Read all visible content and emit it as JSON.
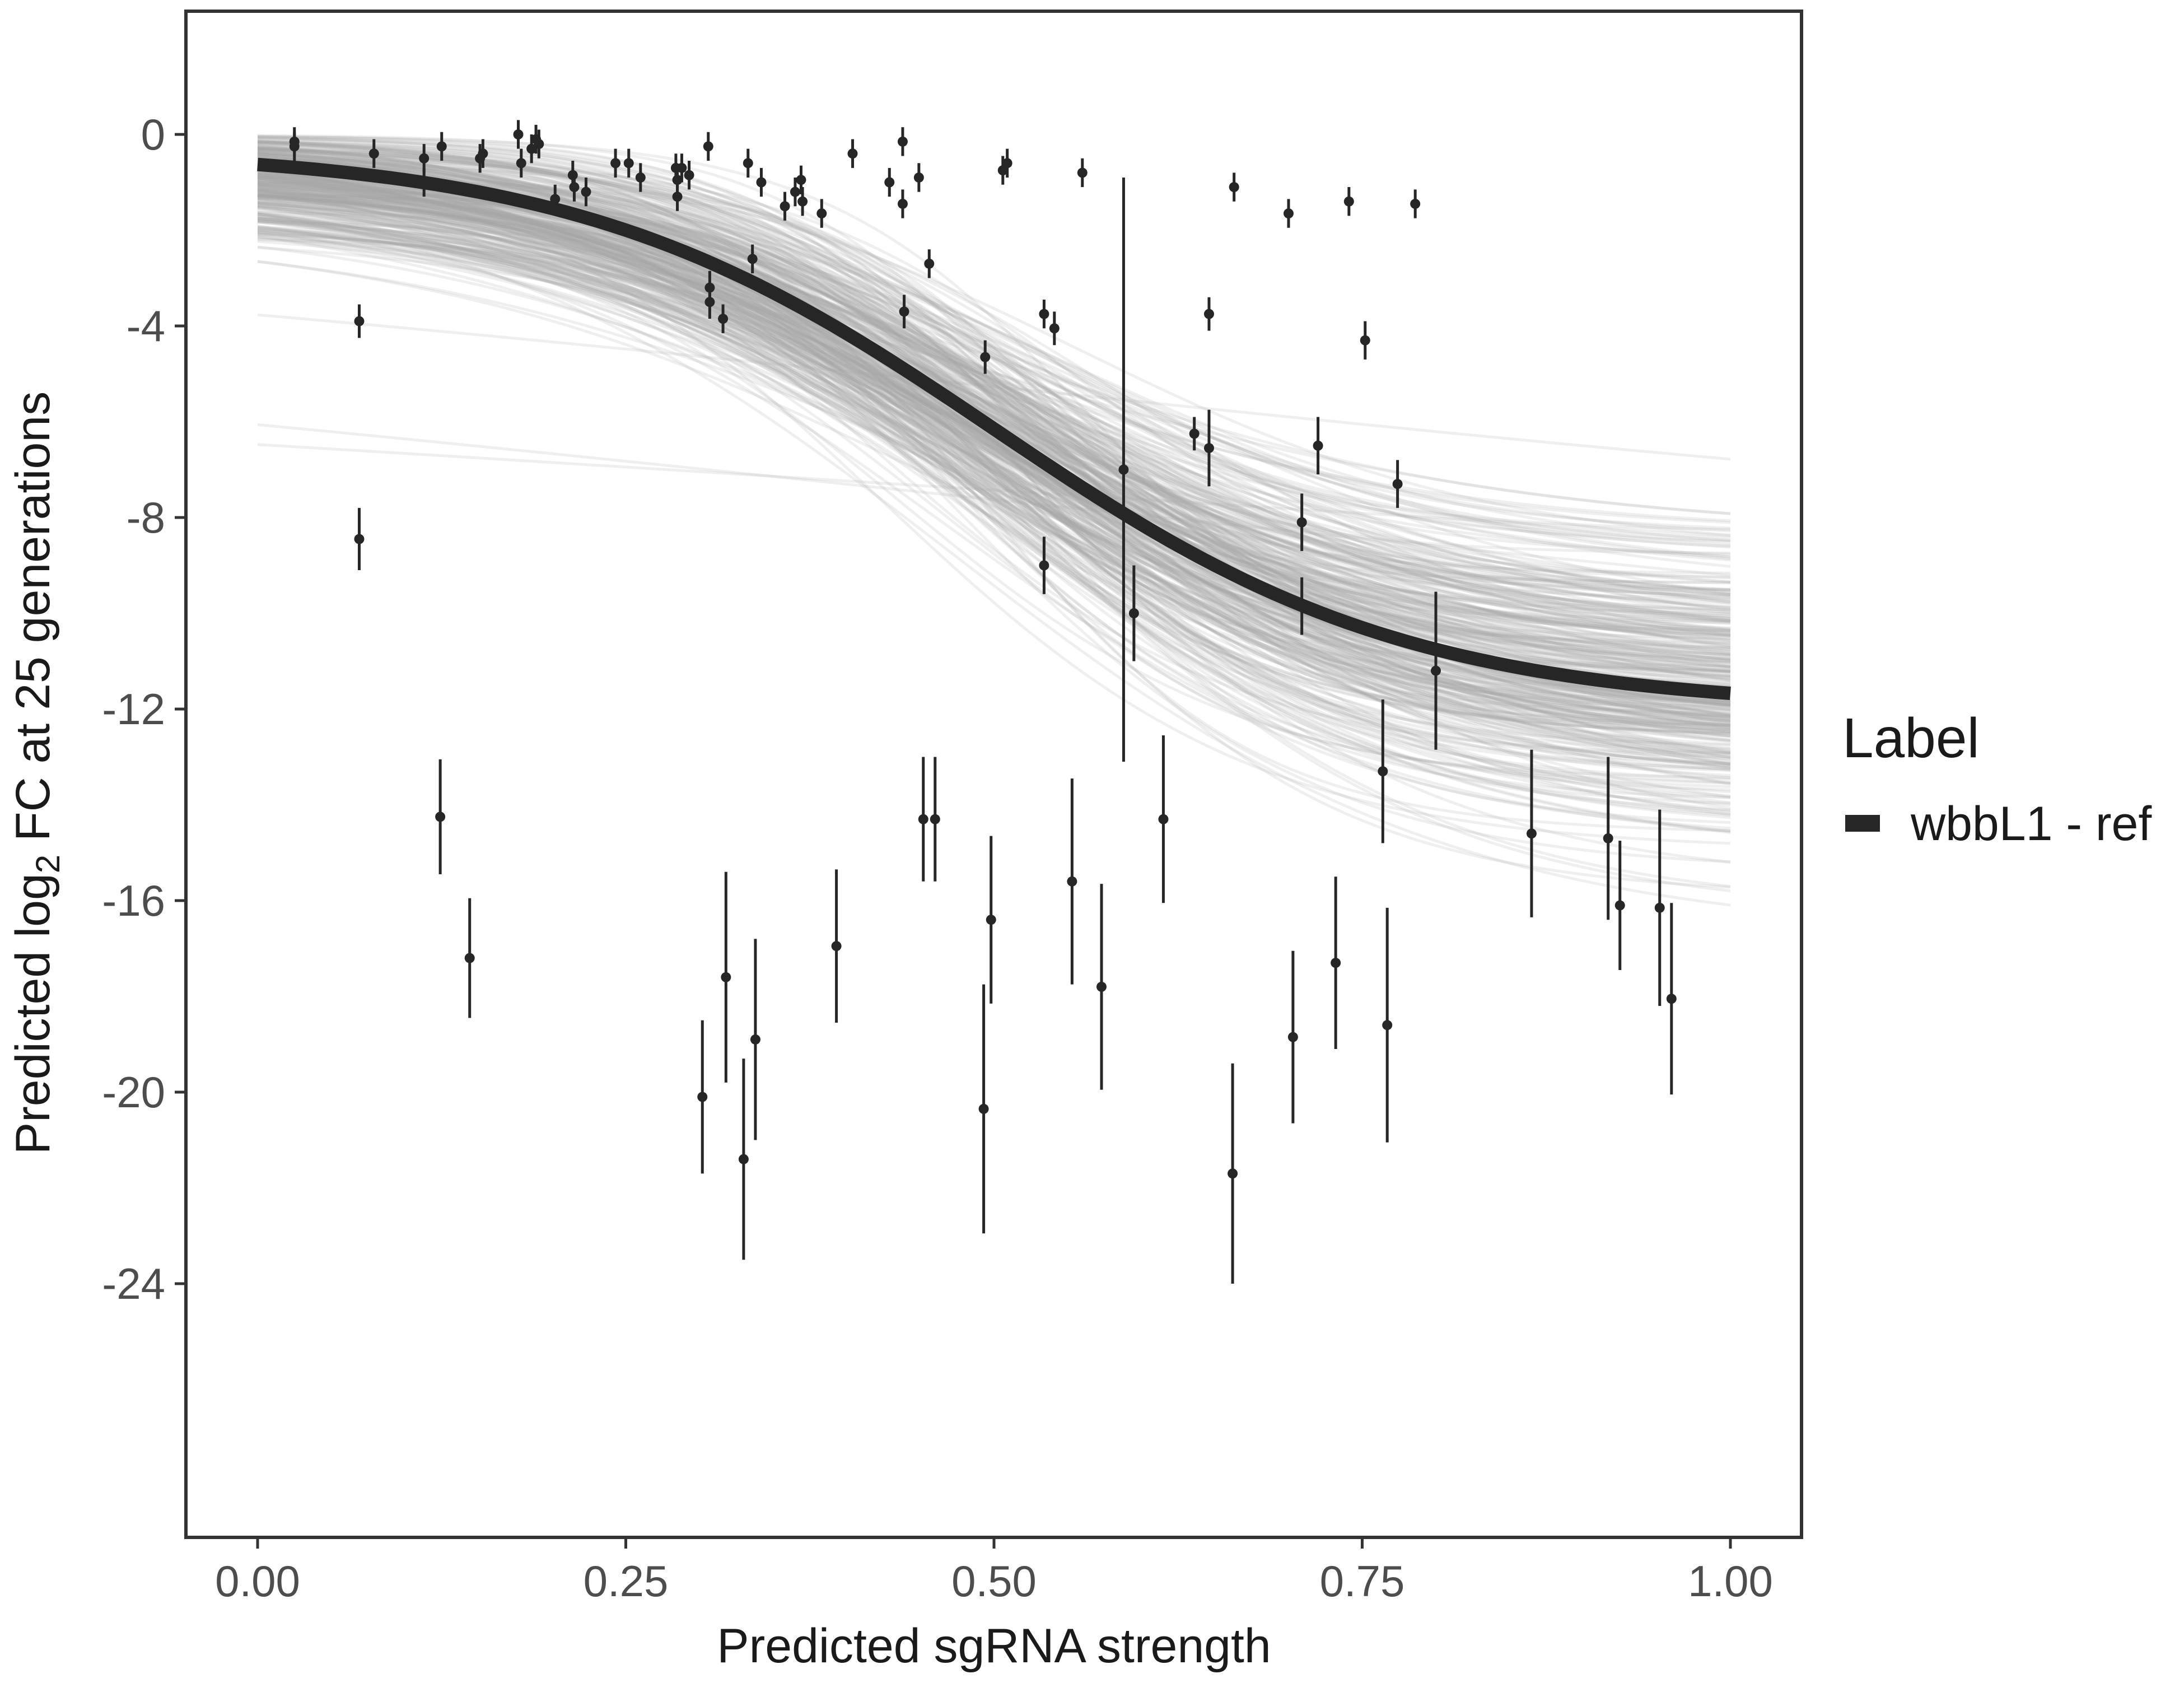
{
  "chart_data": {
    "type": "scatter",
    "xlabel": "Predicted sgRNA strength",
    "ylabel_parts": {
      "pre": "Predicted  log",
      "sub": "2",
      "post": " FC at 25 generations"
    },
    "xlim": [
      -0.05,
      1.05
    ],
    "ylim": [
      -29.3,
      2.6
    ],
    "xticks": [
      0,
      0.25,
      0.5,
      0.75,
      1
    ],
    "xtick_labels": [
      "0.00",
      "0.25",
      "0.50",
      "0.75",
      "1.00"
    ],
    "yticks": [
      0,
      -4,
      -8,
      -12,
      -16,
      -20,
      -24
    ],
    "ytick_labels": [
      "0",
      "-4",
      "-8",
      "-12",
      "-16",
      "-20",
      "-24"
    ],
    "grid": false,
    "legend": {
      "title": "Label",
      "entries": [
        "wbbL1 - ref"
      ],
      "placement": "right"
    },
    "fit_curve": {
      "label": "wbbL1 - ref",
      "model": "sigmoid",
      "top": -0.3,
      "bottom": -12.0,
      "midpoint": 0.5,
      "scale": 0.141,
      "color": "#262626"
    },
    "posterior_band": {
      "color": "#a6a6a6",
      "n_draws": 350
    },
    "points": [
      [
        0.025,
        -0.15,
        0.3
      ],
      [
        0.025,
        -0.25,
        0.3
      ],
      [
        0.079,
        -0.4,
        0.3
      ],
      [
        0.113,
        -0.5,
        0.3
      ],
      [
        0.113,
        -1.0,
        0.3
      ],
      [
        0.125,
        -0.25,
        0.3
      ],
      [
        0.151,
        -0.5,
        0.3
      ],
      [
        0.153,
        -0.4,
        0.3
      ],
      [
        0.177,
        0.0,
        0.3
      ],
      [
        0.179,
        -0.6,
        0.3
      ],
      [
        0.186,
        -0.3,
        0.3
      ],
      [
        0.189,
        -0.1,
        0.3
      ],
      [
        0.191,
        -0.2,
        0.3
      ],
      [
        0.202,
        -1.35,
        0.3
      ],
      [
        0.214,
        -0.85,
        0.3
      ],
      [
        0.215,
        -1.1,
        0.3
      ],
      [
        0.223,
        -1.2,
        0.3
      ],
      [
        0.243,
        -0.6,
        0.3
      ],
      [
        0.252,
        -0.6,
        0.3
      ],
      [
        0.26,
        -0.9,
        0.3
      ],
      [
        0.284,
        -0.7,
        0.3
      ],
      [
        0.285,
        -0.95,
        0.3
      ],
      [
        0.285,
        -1.3,
        0.3
      ],
      [
        0.288,
        -0.7,
        0.3
      ],
      [
        0.293,
        -0.85,
        0.3
      ],
      [
        0.306,
        -0.25,
        0.3
      ],
      [
        0.307,
        -3.2,
        0.35
      ],
      [
        0.307,
        -3.5,
        0.35
      ],
      [
        0.316,
        -3.85,
        0.3
      ],
      [
        0.333,
        -0.6,
        0.3
      ],
      [
        0.336,
        -2.6,
        0.3
      ],
      [
        0.342,
        -1.0,
        0.3
      ],
      [
        0.358,
        -1.5,
        0.3
      ],
      [
        0.365,
        -1.2,
        0.3
      ],
      [
        0.369,
        -0.95,
        0.3
      ],
      [
        0.37,
        -1.4,
        0.3
      ],
      [
        0.383,
        -1.65,
        0.3
      ],
      [
        0.404,
        -0.4,
        0.3
      ],
      [
        0.429,
        -1.0,
        0.3
      ],
      [
        0.438,
        -0.15,
        0.3
      ],
      [
        0.438,
        -1.45,
        0.3
      ],
      [
        0.439,
        -3.7,
        0.35
      ],
      [
        0.449,
        -0.9,
        0.3
      ],
      [
        0.456,
        -2.7,
        0.3
      ],
      [
        0.494,
        -4.65,
        0.35
      ],
      [
        0.506,
        -0.75,
        0.3
      ],
      [
        0.509,
        -0.6,
        0.3
      ],
      [
        0.534,
        -3.75,
        0.3
      ],
      [
        0.541,
        -4.05,
        0.35
      ],
      [
        0.56,
        -0.8,
        0.3
      ],
      [
        0.534,
        -9.0,
        0.6
      ],
      [
        0.588,
        -7.0,
        6.1
      ],
      [
        0.595,
        -10.0,
        1.0
      ],
      [
        0.636,
        -6.25,
        0.35
      ],
      [
        0.646,
        -3.75,
        0.35
      ],
      [
        0.646,
        -6.55,
        0.8
      ],
      [
        0.663,
        -1.1,
        0.3
      ],
      [
        0.7,
        -1.65,
        0.3
      ],
      [
        0.709,
        -8.1,
        0.6
      ],
      [
        0.709,
        -9.85,
        0.6
      ],
      [
        0.72,
        -6.5,
        0.6
      ],
      [
        0.741,
        -1.4,
        0.3
      ],
      [
        0.752,
        -4.3,
        0.4
      ],
      [
        0.774,
        -7.3,
        0.5
      ],
      [
        0.786,
        -1.45,
        0.3
      ],
      [
        0.8,
        -11.2,
        1.65
      ],
      [
        0.069,
        -3.9,
        0.35
      ],
      [
        0.069,
        -8.45,
        0.65
      ],
      [
        0.124,
        -14.25,
        1.2
      ],
      [
        0.144,
        -17.2,
        1.25
      ],
      [
        0.302,
        -20.1,
        1.6
      ],
      [
        0.318,
        -17.6,
        2.2
      ],
      [
        0.33,
        -21.4,
        2.1
      ],
      [
        0.338,
        -18.9,
        2.1
      ],
      [
        0.393,
        -16.95,
        1.6
      ],
      [
        0.452,
        -14.3,
        1.3
      ],
      [
        0.46,
        -14.3,
        1.3
      ],
      [
        0.493,
        -20.35,
        2.6
      ],
      [
        0.498,
        -16.4,
        1.75
      ],
      [
        0.553,
        -15.6,
        2.15
      ],
      [
        0.573,
        -17.8,
        2.15
      ],
      [
        0.615,
        -14.3,
        1.75
      ],
      [
        0.662,
        -21.7,
        2.3
      ],
      [
        0.703,
        -18.85,
        1.8
      ],
      [
        0.732,
        -17.3,
        1.8
      ],
      [
        0.764,
        -13.3,
        1.5
      ],
      [
        0.767,
        -18.6,
        2.45
      ],
      [
        0.865,
        -14.6,
        1.75
      ],
      [
        0.917,
        -14.7,
        1.7
      ],
      [
        0.925,
        -16.1,
        1.35
      ],
      [
        0.952,
        -16.15,
        2.05
      ],
      [
        0.96,
        -18.05,
        2.0
      ]
    ]
  }
}
